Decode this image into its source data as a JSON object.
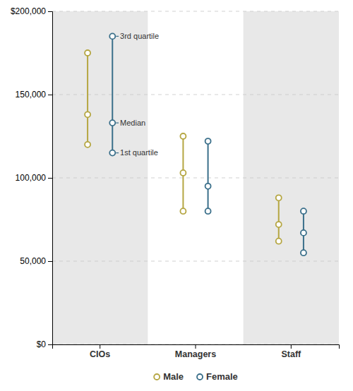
{
  "chart_data": {
    "type": "range",
    "categories": [
      "CIOs",
      "Managers",
      "Staff"
    ],
    "series": [
      {
        "name": "Male",
        "color": "#b5a642",
        "q1": [
          120000,
          80000,
          62000
        ],
        "values": [
          138000,
          103000,
          72000
        ],
        "q3": [
          175000,
          125000,
          88000
        ]
      },
      {
        "name": "Female",
        "color": "#3a6f8a",
        "q1": [
          115000,
          80000,
          55000
        ],
        "values": [
          133000,
          95000,
          67000
        ],
        "q3": [
          185000,
          122000,
          80000
        ]
      }
    ],
    "ylim": [
      0,
      200000
    ],
    "yticks": [
      {
        "value": 0,
        "label": "$0"
      },
      {
        "value": 50000,
        "label": "50,000"
      },
      {
        "value": 100000,
        "label": "100,000"
      },
      {
        "value": 150000,
        "label": "150,000"
      },
      {
        "value": 200000,
        "label": "$200,000"
      }
    ],
    "grid": true,
    "legend": "bottom",
    "annotations": [
      {
        "text": "3rd quartile",
        "series": "Female",
        "category": "CIOs",
        "value": 185000
      },
      {
        "text": "Median",
        "series": "Female",
        "category": "CIOs",
        "value": 133000
      },
      {
        "text": "1st quartile",
        "series": "Female",
        "category": "CIOs",
        "value": 115000
      }
    ]
  }
}
